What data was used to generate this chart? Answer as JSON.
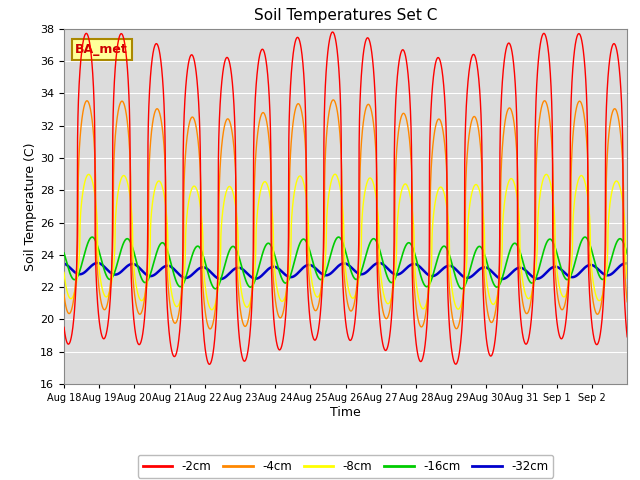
{
  "title": "Soil Temperatures Set C",
  "xlabel": "Time",
  "ylabel": "Soil Temperature (C)",
  "ylim": [
    16,
    38
  ],
  "yticks": [
    16,
    18,
    20,
    22,
    24,
    26,
    28,
    30,
    32,
    34,
    36,
    38
  ],
  "legend_labels": [
    "-2cm",
    "-4cm",
    "-8cm",
    "-16cm",
    "-32cm"
  ],
  "legend_colors": [
    "#ff0000",
    "#ff8800",
    "#ffff00",
    "#00cc00",
    "#0000cc"
  ],
  "line_widths": [
    1.0,
    1.0,
    1.0,
    1.2,
    1.8
  ],
  "annotation_text": "BA_met",
  "annotation_box_color": "#ffff99",
  "annotation_box_edge": "#aa8800",
  "x_tick_labels": [
    "Aug 18",
    "Aug 19",
    "Aug 20",
    "Aug 21",
    "Aug 22",
    "Aug 23",
    "Aug 24",
    "Aug 25",
    "Aug 26",
    "Aug 27",
    "Aug 28",
    "Aug 29",
    "Aug 30",
    "Aug 31",
    "Sep 1",
    "Sep 2"
  ],
  "num_days": 16,
  "grid_color": "#ffffff",
  "series_params": {
    "2cm": {
      "mean": 27.5,
      "amp": 9.5,
      "phase": 0.38,
      "peak_sharp": 3.0
    },
    "4cm": {
      "mean": 26.5,
      "amp": 6.5,
      "phase": 0.4,
      "peak_sharp": 2.5
    },
    "8cm": {
      "mean": 24.8,
      "amp": 3.8,
      "phase": 0.45,
      "peak_sharp": 2.0
    },
    "16cm": {
      "mean": 23.5,
      "amp": 1.3,
      "phase": 0.55,
      "peak_sharp": 1.0
    },
    "32cm": {
      "mean": 23.0,
      "amp": 0.35,
      "phase": 0.7,
      "peak_sharp": 1.0
    }
  }
}
